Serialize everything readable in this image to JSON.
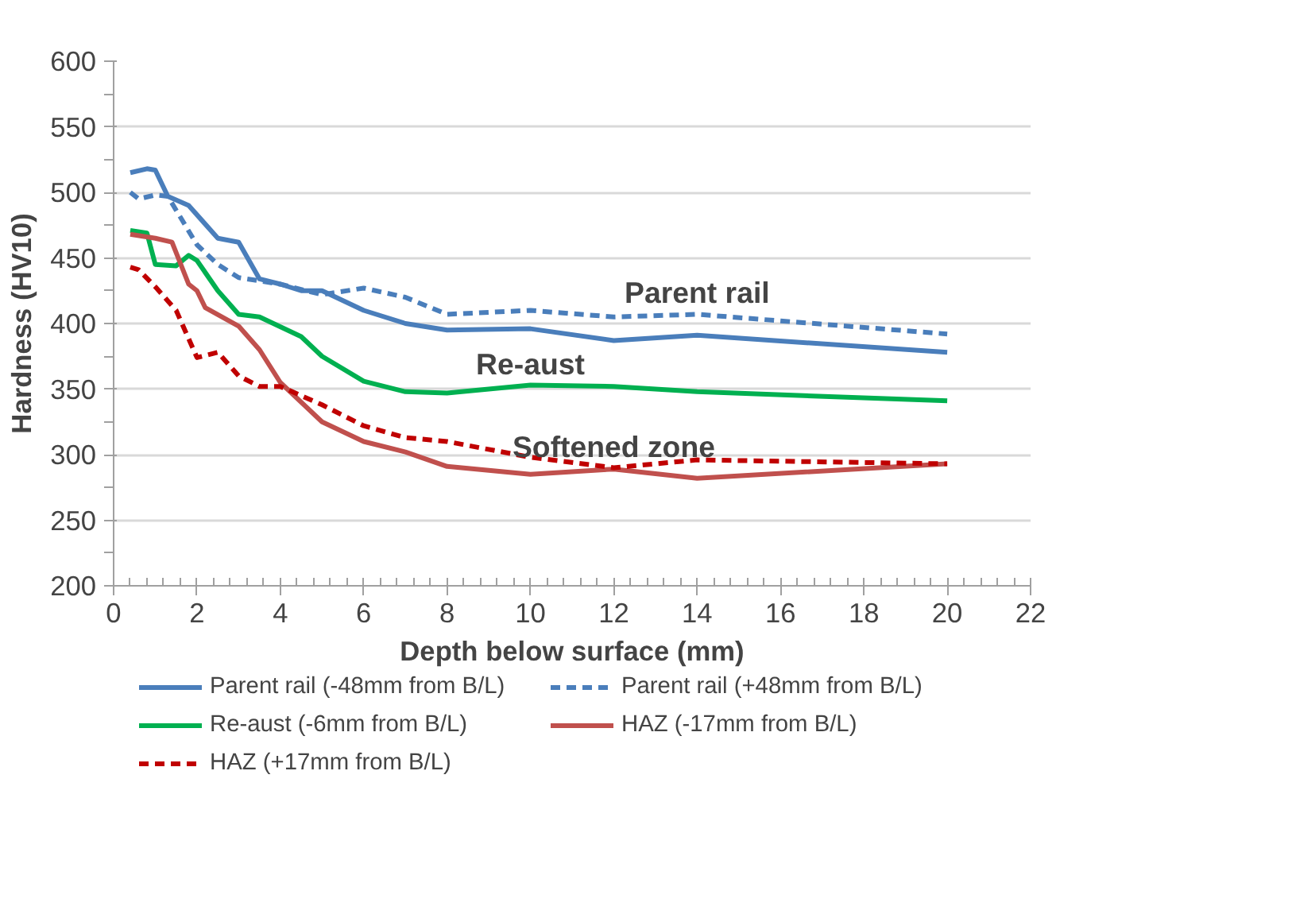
{
  "chart_data": {
    "type": "line",
    "xlabel": "Depth below surface (mm)",
    "ylabel": "Hardness (HV10)",
    "xlim": [
      0,
      22
    ],
    "xticks": [
      0,
      2,
      4,
      6,
      8,
      10,
      12,
      14,
      16,
      18,
      20,
      22
    ],
    "ylim": [
      200,
      600
    ],
    "yticks": [
      200,
      250,
      300,
      350,
      400,
      450,
      500,
      550,
      600
    ],
    "grid": "y",
    "legend": "bottom",
    "marker": "none",
    "series": [
      {
        "name": "Parent rail (-48mm from B/L)",
        "color": "#4a7ebb",
        "line_style": "solid",
        "x": [
          0.4,
          0.8,
          1,
          1.3,
          1.8,
          2.5,
          3,
          3.5,
          4,
          4.5,
          5,
          6,
          7,
          8,
          10,
          12,
          14,
          20
        ],
        "values": [
          515,
          518,
          517,
          497,
          490,
          465,
          462,
          434,
          430,
          425,
          425,
          410,
          400,
          395,
          396,
          387,
          391,
          378
        ]
      },
      {
        "name": "Parent rail (+48mm from B/L)",
        "color": "#4a7ebb",
        "line_style": "dashed",
        "x": [
          0.4,
          0.6,
          1,
          1.3,
          2,
          2.5,
          3,
          4,
          5,
          6,
          7,
          8,
          10,
          12,
          14,
          20
        ],
        "values": [
          500,
          495,
          498,
          497,
          460,
          445,
          435,
          430,
          422,
          427,
          420,
          407,
          410,
          405,
          407,
          392
        ]
      },
      {
        "name": "Re-aust (-6mm from B/L)",
        "color": "#00b050",
        "line_style": "solid",
        "x": [
          0.4,
          0.8,
          1,
          1.5,
          1.8,
          2,
          2.5,
          3,
          3.5,
          4.5,
          5,
          6,
          7,
          8,
          10,
          12,
          14,
          20
        ],
        "values": [
          471,
          469,
          445,
          444,
          452,
          448,
          425,
          407,
          405,
          390,
          375,
          356,
          348,
          347,
          353,
          352,
          348,
          341
        ]
      },
      {
        "name": "HAZ (-17mm from B/L)",
        "color": "#c0504d",
        "line_style": "solid",
        "x": [
          0.4,
          1,
          1.4,
          1.8,
          2,
          2.2,
          3,
          3.5,
          4,
          5,
          6,
          7,
          8,
          10,
          12,
          14,
          20
        ],
        "values": [
          468,
          465,
          462,
          430,
          425,
          412,
          398,
          380,
          355,
          325,
          310,
          302,
          291,
          285,
          289,
          282,
          293
        ]
      },
      {
        "name": "HAZ (+17mm from B/L)",
        "color": "#c00000",
        "line_style": "dashed",
        "x": [
          0.4,
          0.6,
          1,
          1.5,
          2,
          2.5,
          3,
          3.5,
          4,
          5,
          6,
          7,
          8,
          10,
          12,
          14,
          20
        ],
        "values": [
          443,
          441,
          428,
          410,
          374,
          378,
          360,
          352,
          352,
          338,
          322,
          313,
          310,
          298,
          290,
          296,
          293
        ]
      }
    ],
    "annotations": [
      {
        "text": "Parent rail",
        "x": 14,
        "y": 407
      },
      {
        "text": "Re-aust",
        "x": 10,
        "y": 353
      },
      {
        "text": "Softened zone",
        "x": 12,
        "y": 290
      }
    ]
  }
}
